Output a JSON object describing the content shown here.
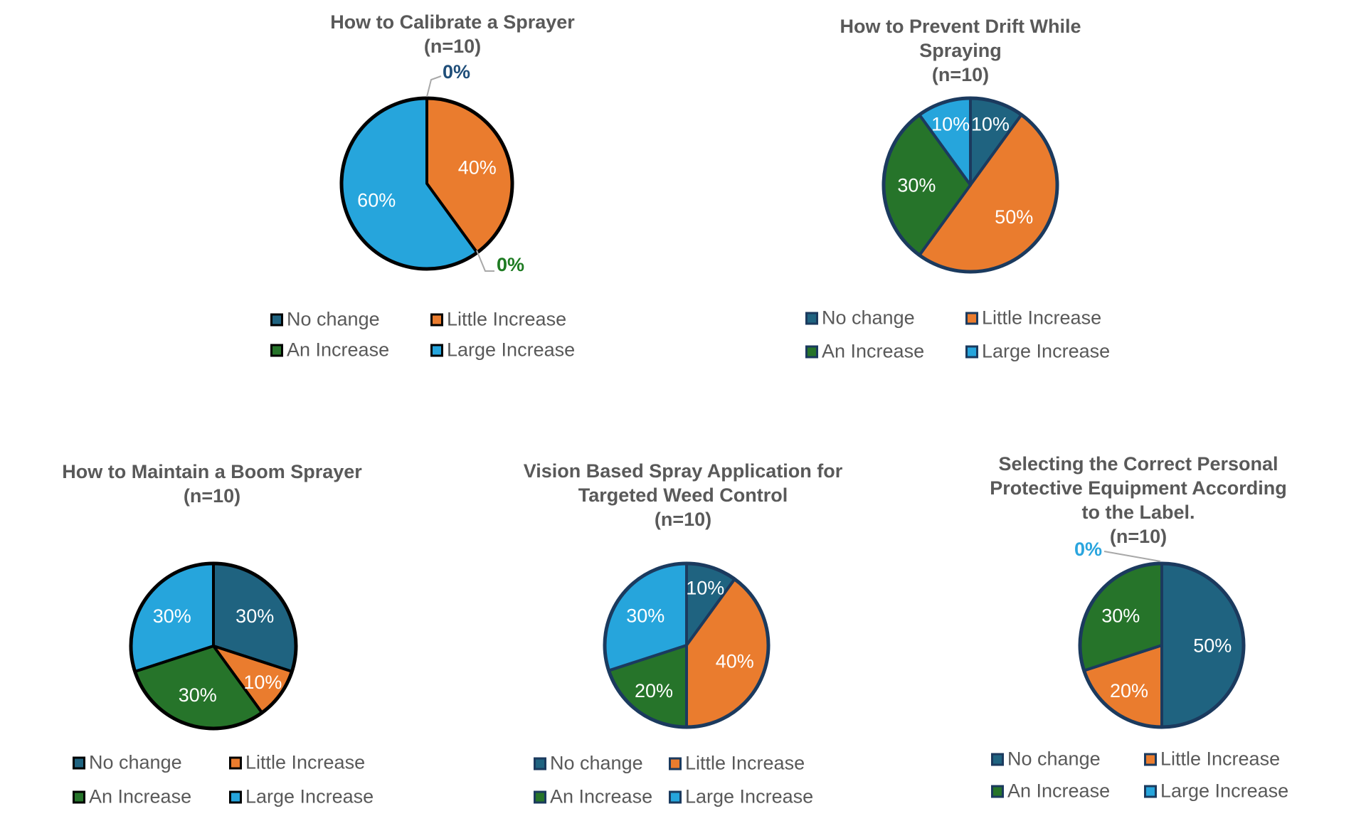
{
  "page": {
    "background": "#ffffff"
  },
  "palette": {
    "no_change": "#1f6380",
    "little_increase": "#ea7c2e",
    "an_increase": "#26742a",
    "large_increase": "#26a5dc",
    "leader_line": "#a8a8a8",
    "title_text": "#595959",
    "legend_text": "#595959",
    "slice_label_text": "#ffffff"
  },
  "legend": {
    "position": "below-chart",
    "columns": 2,
    "items": [
      {
        "label": "No change",
        "color": "#1f6380"
      },
      {
        "label": "Little Increase",
        "color": "#ea7c2e"
      },
      {
        "label": "An Increase",
        "color": "#26742a"
      },
      {
        "label": "Large Increase",
        "color": "#26a5dc"
      }
    ]
  },
  "chart_data": [
    {
      "type": "pie",
      "title_lines": [
        "How to Calibrate a Sprayer",
        "(n=10)"
      ],
      "n": 10,
      "categories": [
        "No change",
        "Little Increase",
        "An Increase",
        "Large Increase"
      ],
      "values": [
        0,
        40,
        0,
        60
      ],
      "unit": "%",
      "slice_labels": [
        "0%",
        "40%",
        "0%",
        "60%"
      ],
      "stroke_color": "#000000",
      "legend_position": "bottom",
      "annotations": [
        {
          "text": "0%",
          "category": "No change",
          "color": "#1f4e79"
        },
        {
          "text": "0%",
          "category": "An Increase",
          "color": "#1e7b22"
        }
      ]
    },
    {
      "type": "pie",
      "title_lines": [
        "How to Prevent Drift While",
        "Spraying",
        "(n=10)"
      ],
      "n": 10,
      "categories": [
        "No change",
        "Little Increase",
        "An Increase",
        "Large Increase"
      ],
      "values": [
        10,
        50,
        30,
        10
      ],
      "unit": "%",
      "slice_labels": [
        "10%",
        "50%",
        "30%",
        "10%"
      ],
      "stroke_color": "#1b3a5e",
      "legend_position": "bottom",
      "annotations": []
    },
    {
      "type": "pie",
      "title_lines": [
        "How to Maintain a Boom Sprayer",
        "(n=10)"
      ],
      "n": 10,
      "categories": [
        "No change",
        "Little Increase",
        "An Increase",
        "Large Increase"
      ],
      "values": [
        30,
        10,
        30,
        30
      ],
      "unit": "%",
      "slice_labels": [
        "30%",
        "10%",
        "30%",
        "30%"
      ],
      "stroke_color": "#000000",
      "legend_position": "bottom",
      "annotations": []
    },
    {
      "type": "pie",
      "title_lines": [
        "Vision Based Spray Application for",
        "Targeted Weed Control",
        "(n=10)"
      ],
      "n": 10,
      "categories": [
        "No change",
        "Little Increase",
        "An Increase",
        "Large Increase"
      ],
      "values": [
        10,
        40,
        20,
        30
      ],
      "unit": "%",
      "slice_labels": [
        "10%",
        "40%",
        "20%",
        "30%"
      ],
      "stroke_color": "#1b3a5e",
      "legend_position": "bottom",
      "annotations": []
    },
    {
      "type": "pie",
      "title_lines": [
        "Selecting the Correct Personal",
        "Protective Equipment According",
        "to the Label.",
        "(n=10)"
      ],
      "n": 10,
      "categories": [
        "No change",
        "Little Increase",
        "An Increase",
        "Large Increase"
      ],
      "values": [
        50,
        20,
        30,
        0
      ],
      "unit": "%",
      "slice_labels": [
        "50%",
        "20%",
        "30%",
        "0%"
      ],
      "stroke_color": "#1b3a5e",
      "legend_position": "bottom",
      "annotations": [
        {
          "text": "0%",
          "category": "Large Increase",
          "color": "#2aa5de"
        }
      ]
    }
  ]
}
